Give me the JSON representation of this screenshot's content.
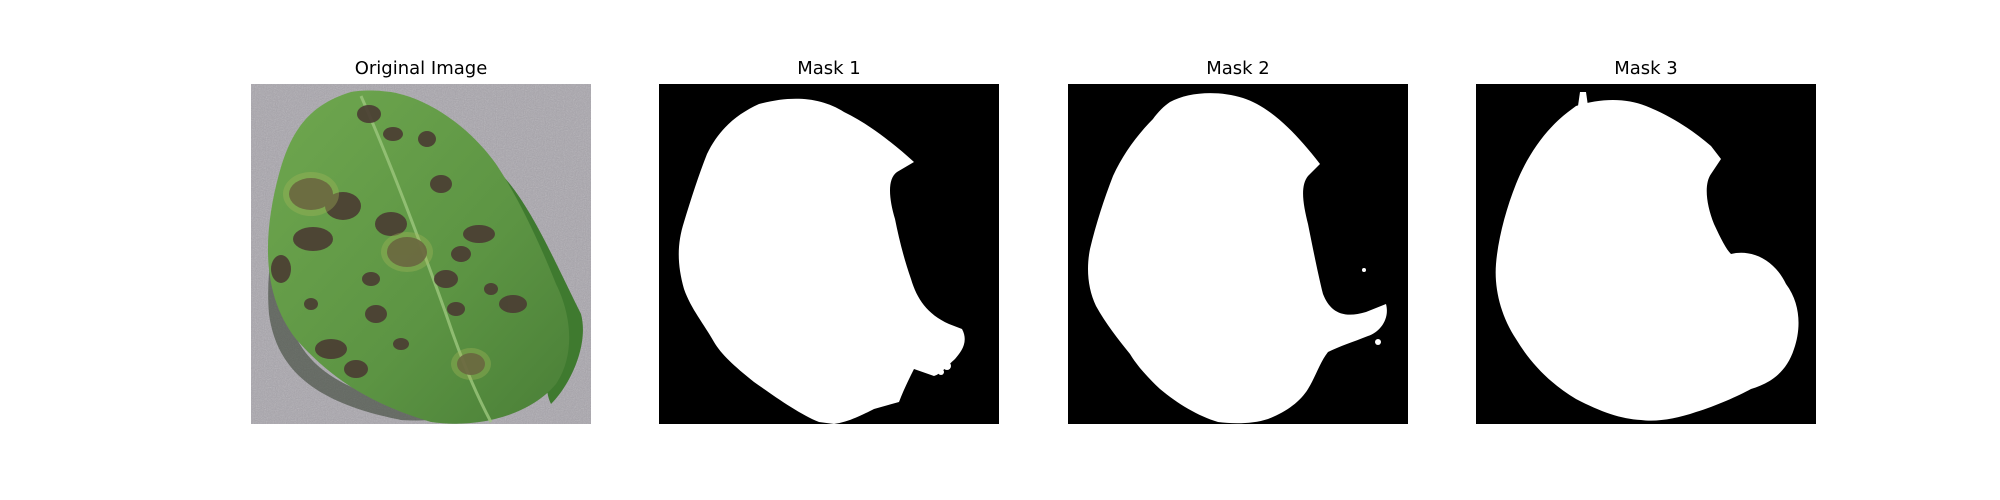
{
  "figure": {
    "panels": [
      {
        "title": "Original Image",
        "kind": "photo",
        "subject": "leaf-with-disease-spots",
        "background_color": "#a9a6ad",
        "leaf_color": "#5e9644",
        "spot_color": "#4b3e33"
      },
      {
        "title": "Mask 1",
        "kind": "binary-mask",
        "background_color": "#000000",
        "mask_color": "#ffffff"
      },
      {
        "title": "Mask 2",
        "kind": "binary-mask",
        "background_color": "#000000",
        "mask_color": "#ffffff"
      },
      {
        "title": "Mask 3",
        "kind": "binary-mask",
        "background_color": "#000000",
        "mask_color": "#ffffff"
      }
    ]
  }
}
